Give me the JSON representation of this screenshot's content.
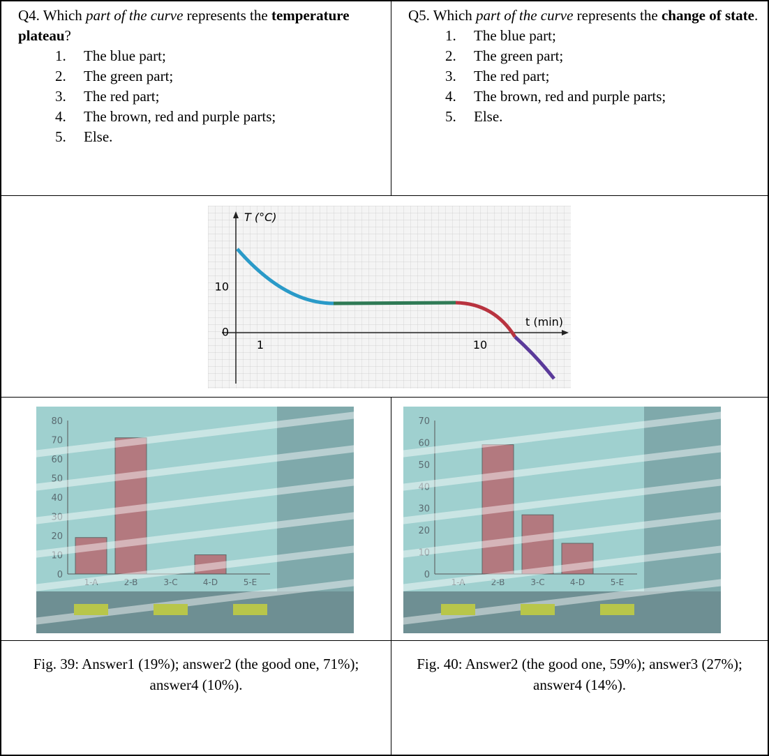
{
  "questions": [
    {
      "lead": "Q4. Which ",
      "emphasis": "part of the curve",
      "middle": " represents the ",
      "strong": "temperature plateau",
      "end": "?",
      "options": [
        {
          "number": "1.",
          "text": "The blue part;"
        },
        {
          "number": "2.",
          "text": "The green part;"
        },
        {
          "number": "3.",
          "text": "The red part;"
        },
        {
          "number": "4.",
          "text": "The brown, red and purple parts;"
        },
        {
          "number": "5.",
          "text": "Else."
        }
      ]
    },
    {
      "lead": "Q5. Which ",
      "emphasis": "part of the curve",
      "middle": " represents the ",
      "strong": "change of state",
      "end": ".",
      "options": [
        {
          "number": "1.",
          "text": "The blue part;"
        },
        {
          "number": "2.",
          "text": "The green part;"
        },
        {
          "number": "3.",
          "text": "The red part;"
        },
        {
          "number": "4.",
          "text": "The brown, red and purple parts;"
        },
        {
          "number": "5.",
          "text": "Else."
        }
      ]
    }
  ],
  "figure": {
    "y_label": "T (°C)",
    "x_label": "t (min)",
    "yticks": [
      0,
      10
    ],
    "xticks": [
      1,
      10
    ]
  },
  "photos": [
    {
      "ylim": [
        0,
        80
      ],
      "yticks": [
        0,
        10,
        20,
        30,
        40,
        50,
        60,
        70,
        80
      ],
      "categories": [
        "1-A",
        "2-B",
        "3-C",
        "4-D",
        "5-E"
      ],
      "values": [
        19,
        71,
        0,
        10,
        0
      ]
    },
    {
      "ylim": [
        0,
        70
      ],
      "yticks": [
        0,
        10,
        20,
        30,
        40,
        50,
        60,
        70
      ],
      "categories": [
        "1-A",
        "2-B",
        "3-C",
        "4-D",
        "5-E"
      ],
      "values": [
        0,
        59,
        27,
        14,
        0
      ]
    }
  ],
  "captions": [
    "Fig. 39: Answer1 (19%); answer2 (the good one, 71%); answer4 (10%).",
    "Fig. 40: Answer2 (the good one, 59%); answer3 (27%); answer4 (14%)."
  ]
}
